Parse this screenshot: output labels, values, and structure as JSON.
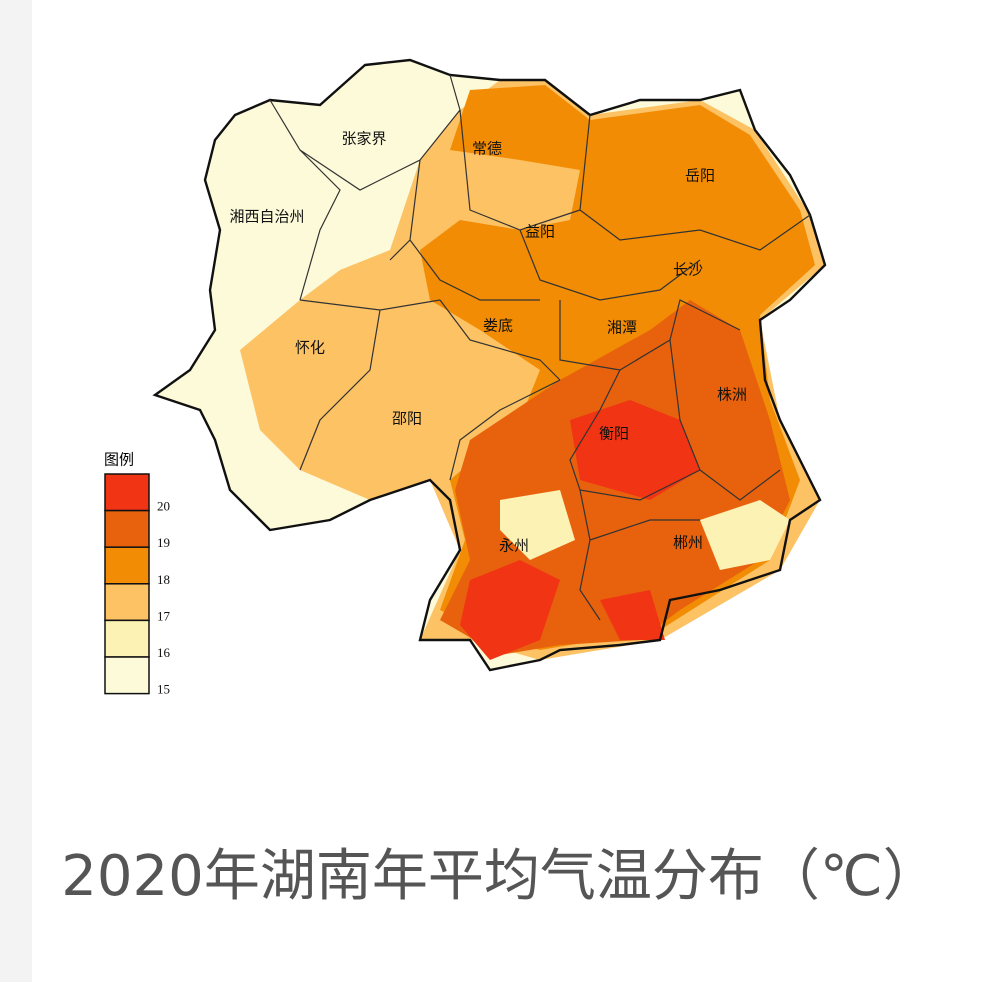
{
  "title": "2020年湖南年平均气温分布（℃）",
  "legend": {
    "title": "图例",
    "colors": [
      "#f03414",
      "#e8620e",
      "#f28c04",
      "#fcc264",
      "#fcf2b4",
      "#fcfad8"
    ],
    "ticks": [
      20,
      19,
      18,
      17,
      16,
      15
    ]
  },
  "cities": [
    {
      "label": "张家界"
    },
    {
      "label": "常德"
    },
    {
      "label": "岳阳"
    },
    {
      "label": "湘西自治州"
    },
    {
      "label": "益阳"
    },
    {
      "label": "长沙"
    },
    {
      "label": "娄底"
    },
    {
      "label": "湘潭"
    },
    {
      "label": "怀化"
    },
    {
      "label": "株洲"
    },
    {
      "label": "邵阳"
    },
    {
      "label": "衡阳"
    },
    {
      "label": "永州"
    },
    {
      "label": "郴州"
    }
  ]
}
